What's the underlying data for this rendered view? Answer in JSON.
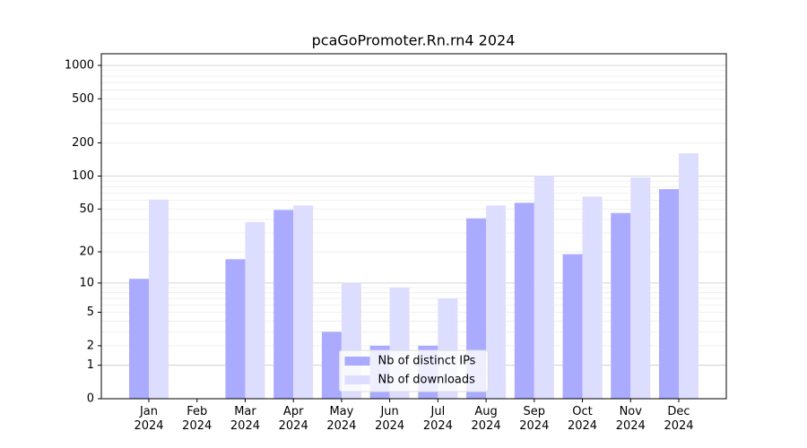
{
  "chart_data": {
    "type": "bar",
    "title": "pcaGoPromoter.Rn.rn4 2024",
    "categories": [
      "Jan\n2024",
      "Feb\n2024",
      "Mar\n2024",
      "Apr\n2024",
      "May\n2024",
      "Jun\n2024",
      "Jul\n2024",
      "Aug\n2024",
      "Sep\n2024",
      "Oct\n2024",
      "Nov\n2024",
      "Dec\n2024"
    ],
    "series": [
      {
        "name": "Nb of distinct IPs",
        "color": "#aaaaff",
        "values": [
          11,
          0,
          17,
          49,
          3,
          2,
          2,
          41,
          57,
          19,
          46,
          76
        ]
      },
      {
        "name": "Nb of downloads",
        "color": "#ddddff",
        "values": [
          61,
          0,
          38,
          54,
          10,
          9,
          7,
          54,
          100,
          65,
          97,
          161
        ]
      }
    ],
    "yscale": "log1p",
    "ylim": [
      0,
      1273
    ],
    "yticks": [
      0,
      1,
      2,
      5,
      10,
      20,
      50,
      100,
      200,
      500,
      1000
    ],
    "minor_yticks": [
      3,
      4,
      6,
      7,
      8,
      9,
      30,
      40,
      60,
      70,
      80,
      90,
      300,
      400,
      600,
      700,
      800,
      900
    ],
    "grid": true,
    "legend": "lower center"
  }
}
